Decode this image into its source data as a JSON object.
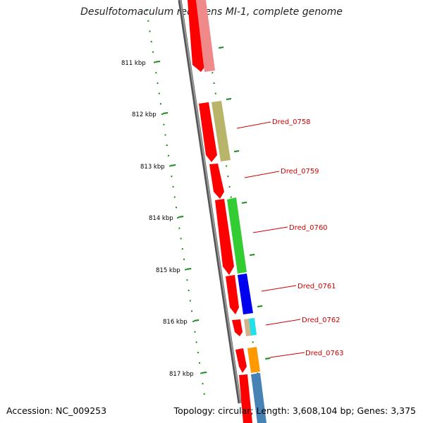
{
  "title": "Desulfotomaculum reducens MI-1, complete genome",
  "footer": {
    "accession": "Accession: NC_009253",
    "summary": "Topology: circular; Length: 3,608,104 bp; Genes: 3,375"
  },
  "ticks": [
    "811 kbp",
    "812 kbp",
    "813 kbp",
    "814 kbp",
    "815 kbp",
    "816 kbp",
    "817 kbp"
  ],
  "gene_labels": [
    "Dred_0758",
    "Dred_0759",
    "Dred_0760",
    "Dred_0761",
    "Dred_0762",
    "Dred_0763"
  ],
  "colors": {
    "backbone": "#7f7f7f",
    "tick": "#1a8a1a",
    "label": "#cc0000",
    "red": "#ff0000",
    "pink": "#f08a8a",
    "khaki": "#b8b46a",
    "green": "#33cc33",
    "blue": "#0000ee",
    "cyan": "#22e0e8",
    "tan": "#d2b48c",
    "orange": "#ff9900",
    "steelblue": "#4682b4"
  }
}
